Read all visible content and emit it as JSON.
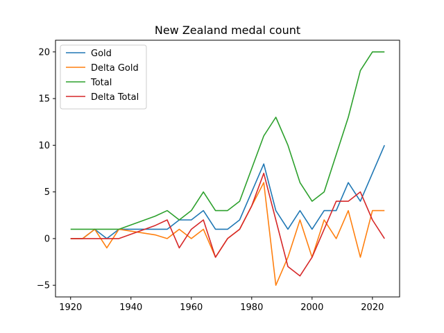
{
  "chart_data": {
    "type": "line",
    "title": "New Zealand medal count",
    "xlabel": "",
    "ylabel": "",
    "xlim": [
      1915,
      2029
    ],
    "ylim": [
      -6.25,
      21.25
    ],
    "xticks": [
      1920,
      1940,
      1960,
      1980,
      2000,
      2020
    ],
    "yticks": [
      -5,
      0,
      5,
      10,
      15,
      20
    ],
    "grid": false,
    "legend_position": "top-left",
    "series": [
      {
        "name": "Gold",
        "color": "#1f77b4",
        "points": [
          [
            1920,
            0
          ],
          [
            1924,
            0
          ],
          [
            1928,
            1
          ],
          [
            1932,
            0
          ],
          [
            1936,
            1
          ],
          [
            1948,
            1
          ],
          [
            1952,
            1
          ],
          [
            1956,
            2
          ],
          [
            1960,
            2
          ],
          [
            1964,
            3
          ],
          [
            1968,
            1
          ],
          [
            1972,
            1
          ],
          [
            1976,
            2
          ],
          [
            1980,
            5
          ],
          [
            1984,
            8
          ],
          [
            1988,
            3
          ],
          [
            1992,
            1
          ],
          [
            1996,
            3
          ],
          [
            2000,
            1
          ],
          [
            2004,
            3
          ],
          [
            2008,
            3
          ],
          [
            2012,
            6
          ],
          [
            2016,
            4
          ],
          [
            2020,
            7
          ],
          [
            2024,
            10
          ]
        ]
      },
      {
        "name": "Delta Gold",
        "color": "#ff7f0e",
        "points": [
          [
            1920,
            0
          ],
          [
            1924,
            0
          ],
          [
            1928,
            1
          ],
          [
            1932,
            -1
          ],
          [
            1936,
            1
          ],
          [
            1948,
            0.4
          ],
          [
            1952,
            0
          ],
          [
            1956,
            1
          ],
          [
            1960,
            0
          ],
          [
            1964,
            1
          ],
          [
            1968,
            -2
          ],
          [
            1972,
            0
          ],
          [
            1976,
            1
          ],
          [
            1980,
            3.5
          ],
          [
            1984,
            6
          ],
          [
            1988,
            -5
          ],
          [
            1992,
            -2
          ],
          [
            1996,
            2
          ],
          [
            2000,
            -2
          ],
          [
            2004,
            2
          ],
          [
            2008,
            0
          ],
          [
            2012,
            3
          ],
          [
            2016,
            -2
          ],
          [
            2020,
            3
          ],
          [
            2024,
            3
          ]
        ]
      },
      {
        "name": "Total",
        "color": "#2ca02c",
        "points": [
          [
            1920,
            1
          ],
          [
            1924,
            1
          ],
          [
            1928,
            1
          ],
          [
            1932,
            1
          ],
          [
            1936,
            1
          ],
          [
            1948,
            2.4
          ],
          [
            1952,
            3
          ],
          [
            1956,
            2
          ],
          [
            1960,
            3
          ],
          [
            1964,
            5
          ],
          [
            1968,
            3
          ],
          [
            1972,
            3
          ],
          [
            1976,
            4
          ],
          [
            1980,
            7.5
          ],
          [
            1984,
            11
          ],
          [
            1988,
            13
          ],
          [
            1992,
            10
          ],
          [
            1996,
            6
          ],
          [
            2000,
            4
          ],
          [
            2004,
            5
          ],
          [
            2008,
            9
          ],
          [
            2012,
            13
          ],
          [
            2016,
            18
          ],
          [
            2020,
            20
          ],
          [
            2024,
            20
          ]
        ]
      },
      {
        "name": "Delta Total",
        "color": "#d62728",
        "points": [
          [
            1920,
            0
          ],
          [
            1924,
            0
          ],
          [
            1928,
            0
          ],
          [
            1932,
            0
          ],
          [
            1936,
            0
          ],
          [
            1948,
            1.4
          ],
          [
            1952,
            2
          ],
          [
            1956,
            -1
          ],
          [
            1960,
            1
          ],
          [
            1964,
            2
          ],
          [
            1968,
            -2
          ],
          [
            1972,
            0
          ],
          [
            1976,
            1
          ],
          [
            1980,
            3.5
          ],
          [
            1984,
            7
          ],
          [
            1988,
            2
          ],
          [
            1992,
            -3
          ],
          [
            1996,
            -4
          ],
          [
            2000,
            -2
          ],
          [
            2004,
            1
          ],
          [
            2008,
            4
          ],
          [
            2012,
            4
          ],
          [
            2016,
            5
          ],
          [
            2020,
            2
          ],
          [
            2024,
            0
          ]
        ]
      }
    ]
  }
}
